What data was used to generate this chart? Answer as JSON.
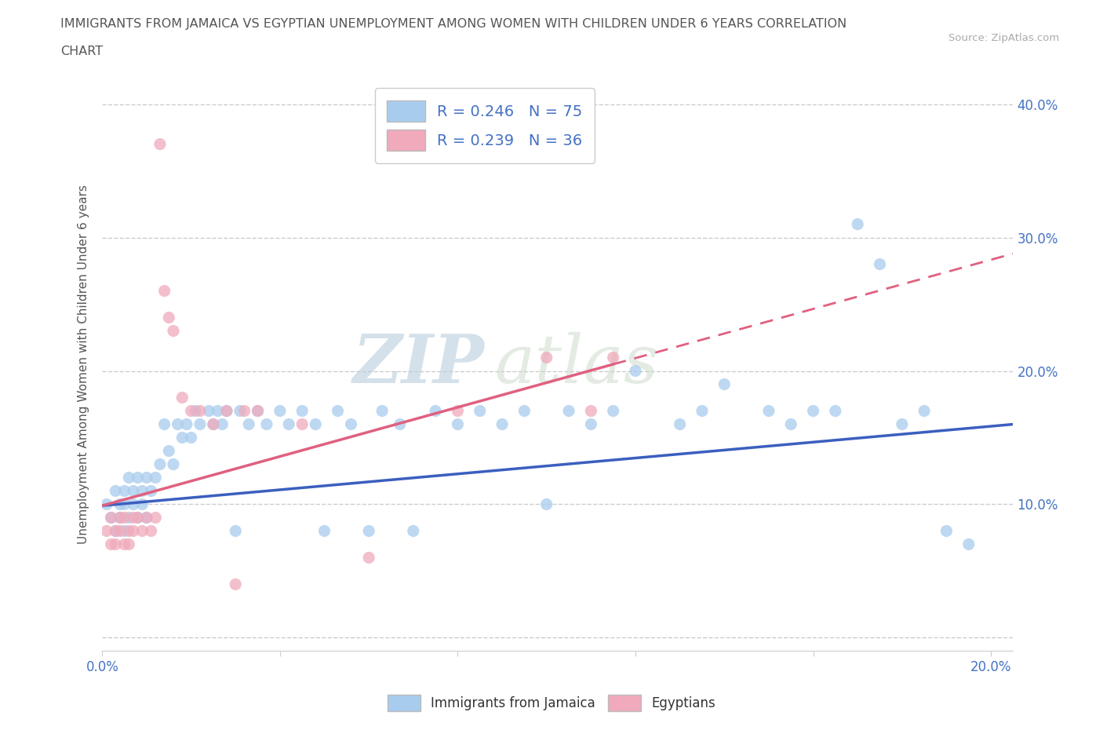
{
  "title_line1": "IMMIGRANTS FROM JAMAICA VS EGYPTIAN UNEMPLOYMENT AMONG WOMEN WITH CHILDREN UNDER 6 YEARS CORRELATION",
  "title_line2": "CHART",
  "source": "Source: ZipAtlas.com",
  "ylabel": "Unemployment Among Women with Children Under 6 years",
  "xlim": [
    0.0,
    0.205
  ],
  "ylim": [
    -0.01,
    0.42
  ],
  "xticks": [
    0.0,
    0.04,
    0.08,
    0.12,
    0.16,
    0.2
  ],
  "xticklabels": [
    "0.0%",
    "",
    "",
    "",
    "",
    "20.0%"
  ],
  "yticks": [
    0.0,
    0.1,
    0.2,
    0.3,
    0.4
  ],
  "yticklabels": [
    "",
    "10.0%",
    "20.0%",
    "30.0%",
    "40.0%"
  ],
  "jamaica_color": "#A8CCEE",
  "egypt_color": "#F0AABB",
  "jamaica_line_color": "#3B5FBF",
  "egypt_line_color": "#E06080",
  "R_jamaica": 0.246,
  "N_jamaica": 75,
  "R_egypt": 0.239,
  "N_egypt": 36,
  "legend_label_jamaica": "Immigrants from Jamaica",
  "legend_label_egypt": "Egyptians",
  "axis_label_color": "#4472C4",
  "watermark_color": "#CCDDEE",
  "background_color": "#ffffff",
  "grid_color": "#cccccc",
  "title_color": "#555555",
  "jamaica_x": [
    0.001,
    0.002,
    0.003,
    0.003,
    0.004,
    0.004,
    0.005,
    0.005,
    0.005,
    0.006,
    0.006,
    0.007,
    0.007,
    0.008,
    0.008,
    0.009,
    0.009,
    0.01,
    0.01,
    0.011,
    0.012,
    0.013,
    0.014,
    0.015,
    0.016,
    0.017,
    0.018,
    0.019,
    0.02,
    0.021,
    0.022,
    0.024,
    0.025,
    0.026,
    0.027,
    0.028,
    0.03,
    0.031,
    0.033,
    0.035,
    0.037,
    0.04,
    0.042,
    0.045,
    0.048,
    0.05,
    0.053,
    0.056,
    0.06,
    0.063,
    0.067,
    0.07,
    0.075,
    0.08,
    0.085,
    0.09,
    0.095,
    0.1,
    0.105,
    0.11,
    0.115,
    0.12,
    0.13,
    0.135,
    0.14,
    0.15,
    0.155,
    0.16,
    0.165,
    0.17,
    0.175,
    0.18,
    0.185,
    0.19,
    0.195
  ],
  "jamaica_y": [
    0.1,
    0.09,
    0.11,
    0.08,
    0.1,
    0.09,
    0.11,
    0.1,
    0.08,
    0.12,
    0.09,
    0.11,
    0.1,
    0.12,
    0.09,
    0.11,
    0.1,
    0.12,
    0.09,
    0.11,
    0.12,
    0.13,
    0.16,
    0.14,
    0.13,
    0.16,
    0.15,
    0.16,
    0.15,
    0.17,
    0.16,
    0.17,
    0.16,
    0.17,
    0.16,
    0.17,
    0.08,
    0.17,
    0.16,
    0.17,
    0.16,
    0.17,
    0.16,
    0.17,
    0.16,
    0.08,
    0.17,
    0.16,
    0.08,
    0.17,
    0.16,
    0.08,
    0.17,
    0.16,
    0.17,
    0.16,
    0.17,
    0.1,
    0.17,
    0.16,
    0.17,
    0.2,
    0.16,
    0.17,
    0.19,
    0.17,
    0.16,
    0.17,
    0.17,
    0.31,
    0.28,
    0.16,
    0.17,
    0.08,
    0.07
  ],
  "egypt_x": [
    0.001,
    0.002,
    0.002,
    0.003,
    0.003,
    0.004,
    0.004,
    0.005,
    0.005,
    0.006,
    0.006,
    0.007,
    0.007,
    0.008,
    0.009,
    0.01,
    0.011,
    0.012,
    0.013,
    0.014,
    0.015,
    0.016,
    0.018,
    0.02,
    0.022,
    0.025,
    0.028,
    0.03,
    0.032,
    0.035,
    0.045,
    0.06,
    0.08,
    0.1,
    0.11,
    0.115
  ],
  "egypt_y": [
    0.08,
    0.09,
    0.07,
    0.08,
    0.07,
    0.09,
    0.08,
    0.07,
    0.09,
    0.08,
    0.07,
    0.09,
    0.08,
    0.09,
    0.08,
    0.09,
    0.08,
    0.09,
    0.37,
    0.26,
    0.24,
    0.23,
    0.18,
    0.17,
    0.17,
    0.16,
    0.17,
    0.04,
    0.17,
    0.17,
    0.16,
    0.06,
    0.17,
    0.21,
    0.17,
    0.21
  ],
  "jamaica_trend": [
    0.0,
    0.205,
    0.099,
    0.16
  ],
  "egypt_trend_solid": [
    0.0,
    0.115,
    0.099,
    0.205
  ],
  "egypt_trend_dashed": [
    0.115,
    0.205,
    0.205,
    0.235
  ]
}
